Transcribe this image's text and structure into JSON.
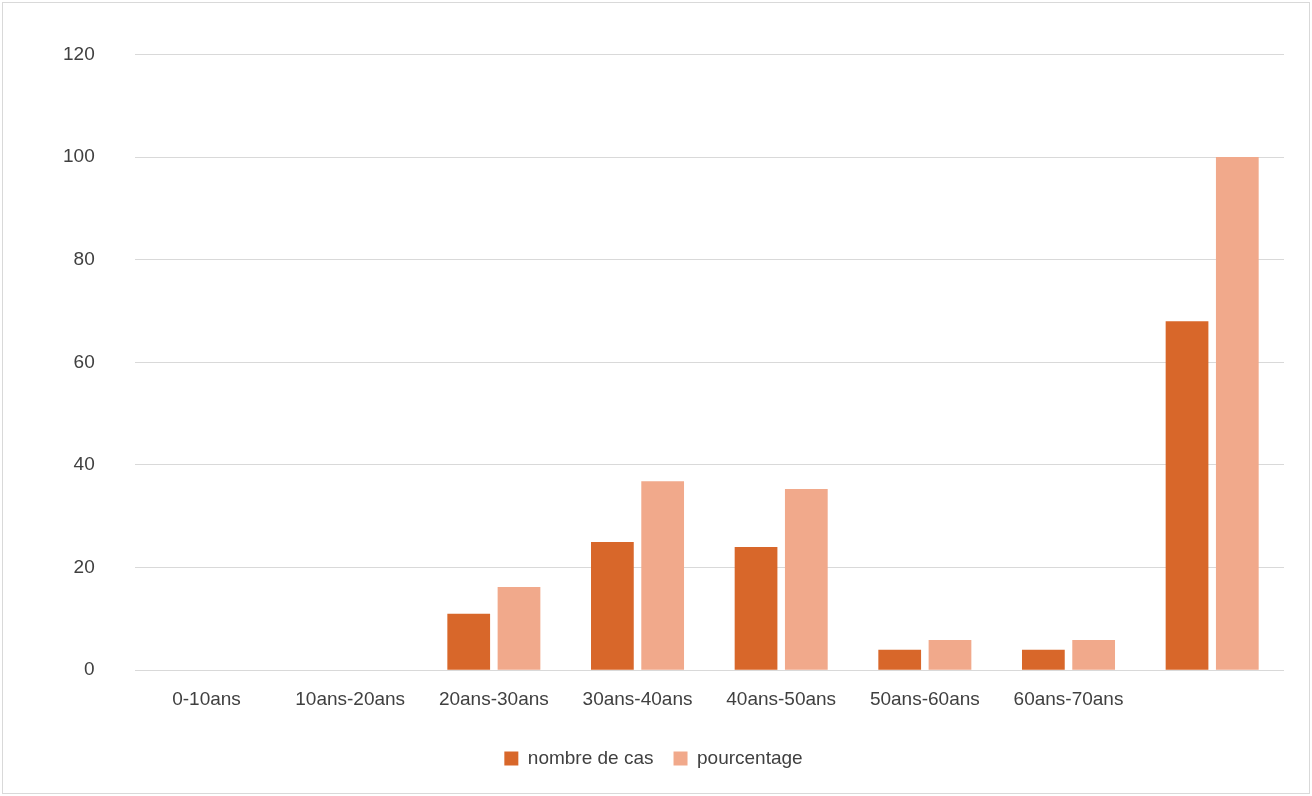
{
  "chart_data": {
    "type": "bar",
    "categories": [
      "0-10ans",
      "10ans-20ans",
      "20ans-30ans",
      "30ans-40ans",
      "40ans-50ans",
      "50ans-60ans",
      "60ans-70ans",
      null
    ],
    "series": [
      {
        "name": "nombre de cas",
        "color": "#d8672a",
        "values": [
          0,
          0,
          11,
          25,
          24,
          4,
          4,
          68
        ]
      },
      {
        "name": "pourcentage",
        "color": "#f1a98b",
        "values": [
          0,
          0,
          16.2,
          36.8,
          35.3,
          5.9,
          5.9,
          100
        ]
      }
    ],
    "ylim": [
      0,
      120
    ],
    "yticks": [
      0,
      20,
      40,
      60,
      80,
      100,
      120
    ],
    "grid": "y",
    "legend": "bottom"
  }
}
